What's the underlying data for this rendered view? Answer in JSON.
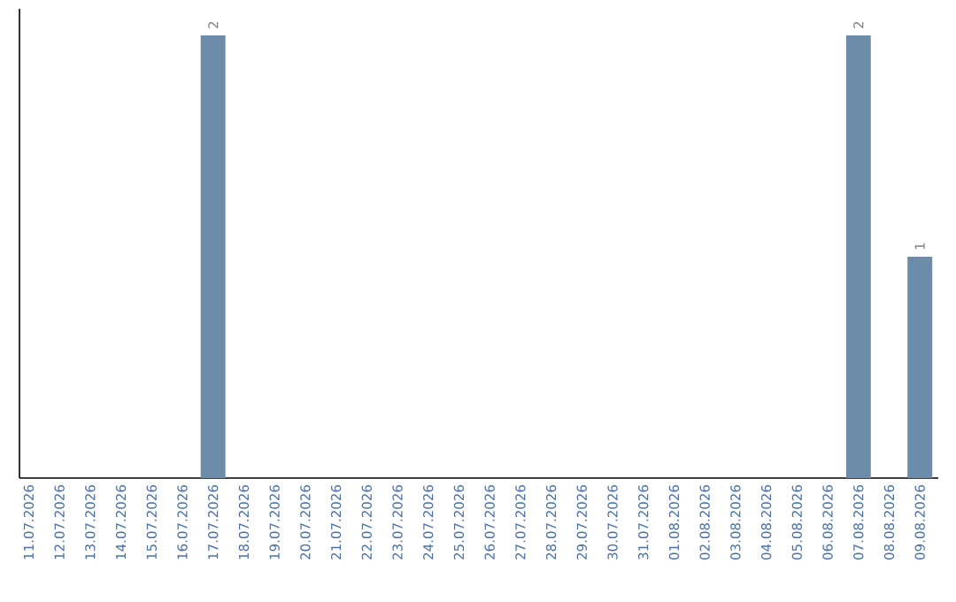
{
  "chart_data": {
    "type": "bar",
    "categories": [
      "11.07.2026",
      "12.07.2026",
      "13.07.2026",
      "14.07.2026",
      "15.07.2026",
      "16.07.2026",
      "17.07.2026",
      "18.07.2026",
      "19.07.2026",
      "20.07.2026",
      "21.07.2026",
      "22.07.2026",
      "23.07.2026",
      "24.07.2026",
      "25.07.2026",
      "26.07.2026",
      "27.07.2026",
      "28.07.2026",
      "29.07.2026",
      "30.07.2026",
      "31.07.2026",
      "01.08.2026",
      "02.08.2026",
      "03.08.2026",
      "04.08.2026",
      "05.08.2026",
      "06.08.2026",
      "07.08.2026",
      "08.08.2026",
      "09.08.2026"
    ],
    "values": [
      0,
      0,
      0,
      0,
      0,
      0,
      2,
      0,
      0,
      0,
      0,
      0,
      0,
      0,
      0,
      0,
      0,
      0,
      0,
      0,
      0,
      0,
      0,
      0,
      0,
      0,
      0,
      2,
      0,
      1
    ],
    "value_labels": [
      null,
      null,
      null,
      null,
      null,
      null,
      "2",
      null,
      null,
      null,
      null,
      null,
      null,
      null,
      null,
      null,
      null,
      null,
      null,
      null,
      null,
      null,
      null,
      null,
      null,
      null,
      null,
      "2",
      null,
      "1"
    ],
    "color": "#6d8caa"
  }
}
